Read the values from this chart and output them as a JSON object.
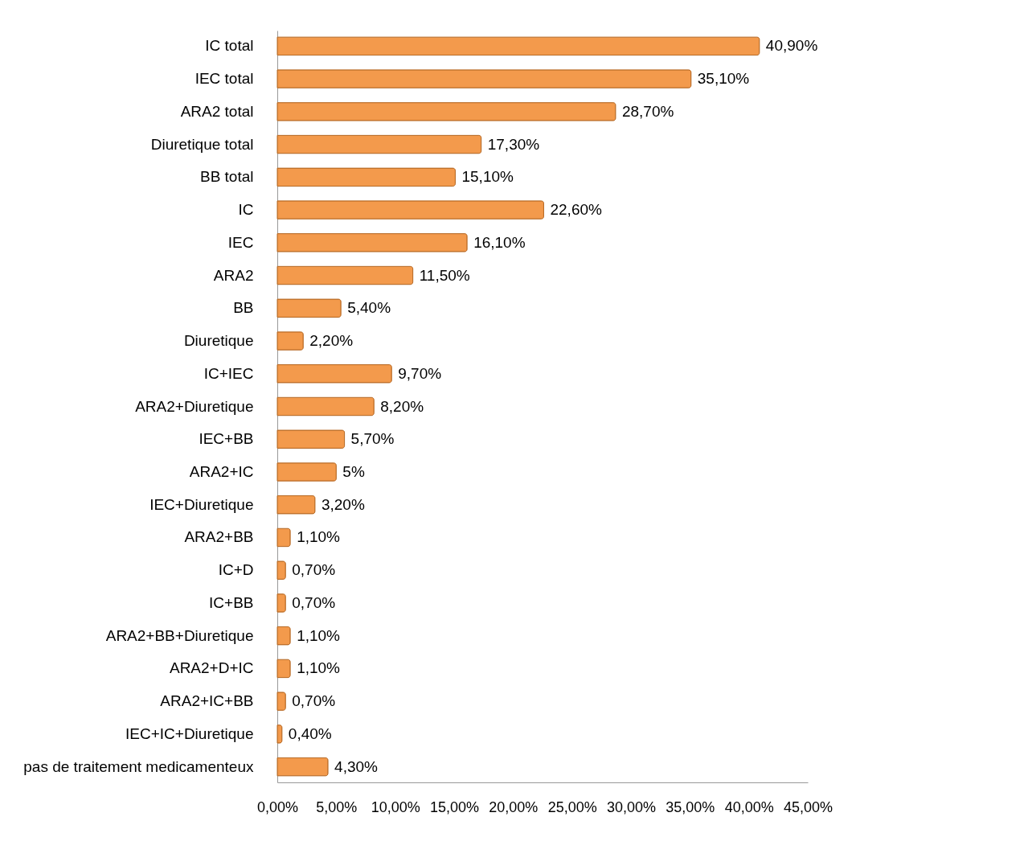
{
  "chart_data": {
    "type": "bar",
    "orientation": "horizontal",
    "categories": [
      "IC total",
      "IEC total",
      "ARA2 total",
      "Diuretique total",
      "BB total",
      "IC",
      "IEC",
      "ARA2",
      "BB",
      "Diuretique",
      "IC+IEC",
      "ARA2+Diuretique",
      "IEC+BB",
      "ARA2+IC",
      "IEC+Diuretique",
      "ARA2+BB",
      "IC+D",
      "IC+BB",
      "ARA2+BB+Diuretique",
      "ARA2+D+IC",
      "ARA2+IC+BB",
      "IEC+IC+Diuretique",
      "pas de traitement medicamenteux"
    ],
    "values": [
      40.9,
      35.1,
      28.7,
      17.3,
      15.1,
      22.6,
      16.1,
      11.5,
      5.4,
      2.2,
      9.7,
      8.2,
      5.7,
      5,
      3.2,
      1.1,
      0.7,
      0.7,
      1.1,
      1.1,
      0.7,
      0.4,
      4.3
    ],
    "value_labels": [
      "40,90%",
      "35,10%",
      "28,70%",
      "17,30%",
      "15,10%",
      "22,60%",
      "16,10%",
      "11,50%",
      "5,40%",
      "2,20%",
      "9,70%",
      "8,20%",
      "5,70%",
      "5%",
      "3,20%",
      "1,10%",
      "0,70%",
      "0,70%",
      "1,10%",
      "1,10%",
      "0,70%",
      "0,40%",
      "4,30%"
    ],
    "color": "#f39a4c",
    "xlim": [
      0,
      45
    ],
    "xticks": [
      {
        "value": 0,
        "label": "0,00%"
      },
      {
        "value": 5,
        "label": "5,00%"
      },
      {
        "value": 10,
        "label": "10,00%"
      },
      {
        "value": 15,
        "label": "15,00%"
      },
      {
        "value": 20,
        "label": "20,00%"
      },
      {
        "value": 25,
        "label": "25,00%"
      },
      {
        "value": 30,
        "label": "30,00%"
      },
      {
        "value": 35,
        "label": "35,00%"
      },
      {
        "value": 40,
        "label": "40,00%"
      },
      {
        "value": 45,
        "label": "45,00%"
      }
    ],
    "grid": false
  }
}
